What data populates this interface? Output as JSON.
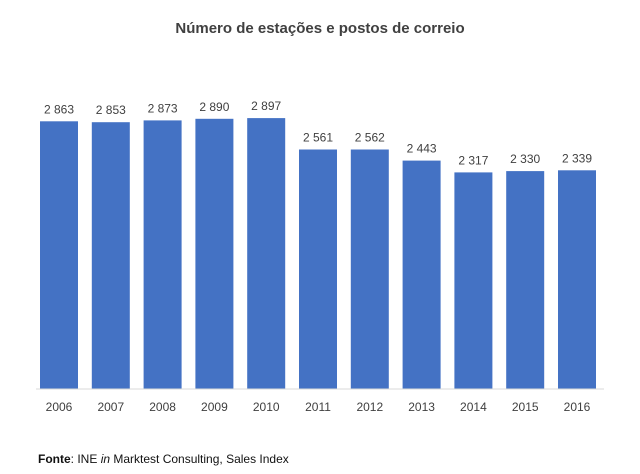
{
  "chart_data": {
    "type": "bar",
    "title": "Número de estações e postos de correio",
    "categories": [
      "2006",
      "2007",
      "2008",
      "2009",
      "2010",
      "2011",
      "2012",
      "2013",
      "2014",
      "2015",
      "2016"
    ],
    "values": [
      2863,
      2853,
      2873,
      2890,
      2897,
      2561,
      2562,
      2443,
      2317,
      2330,
      2339
    ],
    "value_labels": [
      "2 863",
      "2 853",
      "2 873",
      "2 890",
      "2 897",
      "2 561",
      "2 562",
      "2 443",
      "2 317",
      "2 330",
      "2 339"
    ],
    "xlabel": "",
    "ylabel": "",
    "grid": false,
    "legend": "none",
    "bar_color": "#4472C4"
  },
  "source": {
    "label": "Fonte",
    "sep": ": ",
    "prefix": "INE ",
    "italic": "in",
    "suffix": " Marktest Consulting, Sales Index"
  }
}
